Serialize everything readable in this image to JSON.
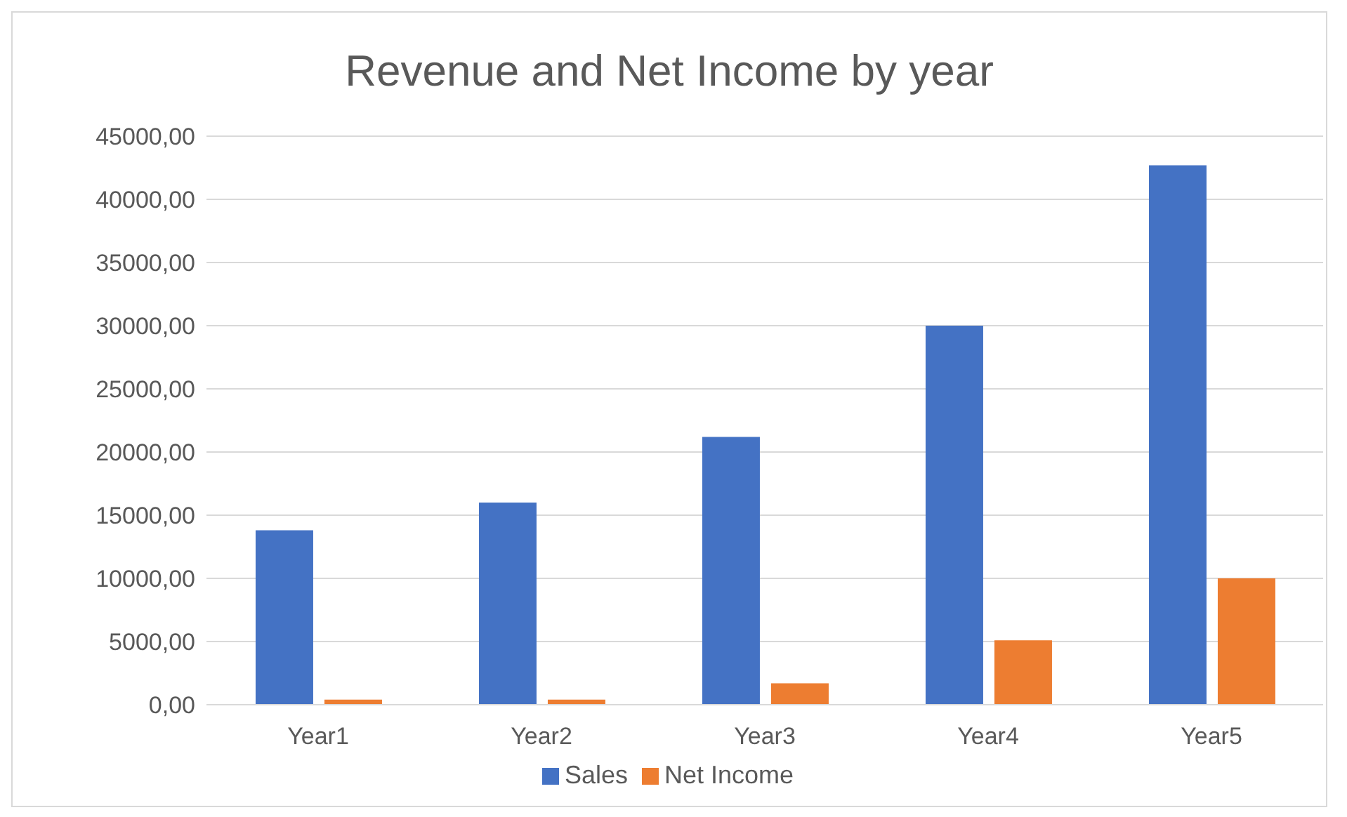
{
  "chart_data": {
    "type": "bar",
    "title": "Revenue and Net Income by year",
    "categories": [
      "Year1",
      "Year2",
      "Year3",
      "Year4",
      "Year5"
    ],
    "series": [
      {
        "name": "Sales",
        "color": "#4472c4",
        "values": [
          13800,
          16000,
          21200,
          30000,
          42700
        ]
      },
      {
        "name": "Net Income",
        "color": "#ed7d31",
        "values": [
          400,
          400,
          1700,
          5100,
          10000
        ]
      }
    ],
    "ylim": [
      0,
      45000
    ],
    "yticks": [
      {
        "value": 0,
        "label": "0,00"
      },
      {
        "value": 5000,
        "label": "5000,00"
      },
      {
        "value": 10000,
        "label": "10000,00"
      },
      {
        "value": 15000,
        "label": "15000,00"
      },
      {
        "value": 20000,
        "label": "20000,00"
      },
      {
        "value": 25000,
        "label": "25000,00"
      },
      {
        "value": 30000,
        "label": "30000,00"
      },
      {
        "value": 35000,
        "label": "35000,00"
      },
      {
        "value": 40000,
        "label": "40000,00"
      },
      {
        "value": 45000,
        "label": "45000,00"
      }
    ],
    "grid": "y",
    "legend": "bottom"
  }
}
